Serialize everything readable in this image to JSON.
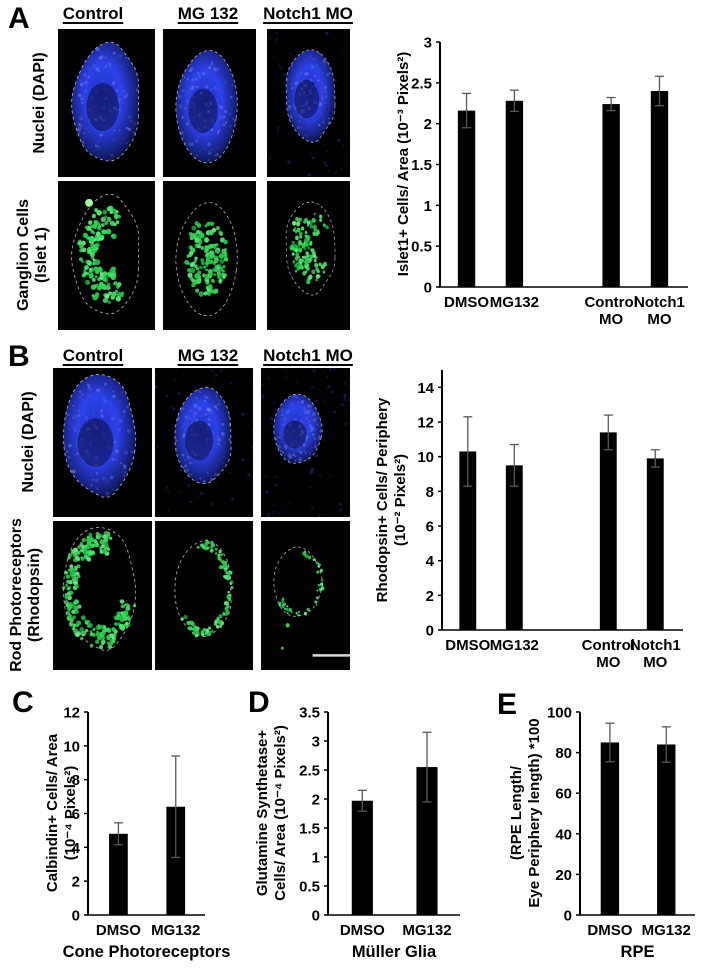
{
  "figure": {
    "panels": {
      "A": {
        "label": "A",
        "columns": [
          "Control",
          "MG 132",
          "Notch1 MO"
        ],
        "rows": [
          [
            "Nuclei (DAPI)"
          ],
          [
            "Ganglion Cells",
            "(Islet 1)"
          ]
        ]
      },
      "B": {
        "label": "B",
        "columns": [
          "Control",
          "MG 132",
          "Notch1 MO"
        ],
        "rows": [
          [
            "Nuclei (DAPI)"
          ],
          [
            "Rod Photoreceptors",
            "(Rhodopsin)"
          ]
        ]
      },
      "C": {
        "label": "C"
      },
      "D": {
        "label": "D"
      },
      "E": {
        "label": "E"
      }
    }
  },
  "colors": {
    "bar": "#000000",
    "error_bar": "#595959",
    "axis": "#000000",
    "dapi_blue": "#2c41e8",
    "stain_green": "#35d54a",
    "outline_dash": "#c9c9c9",
    "scale_bar": "#d5d5d5"
  },
  "chart_data": [
    {
      "panel": "A",
      "type": "bar",
      "ylabel_lines": [
        "Islet1+ Cells/ Area (10⁻³ Pixels²)"
      ],
      "xlabel": "",
      "categories": [
        [
          "DMSO"
        ],
        [
          "MG132"
        ],
        [
          "Control",
          "MO"
        ],
        [
          "Notch1",
          "MO"
        ]
      ],
      "values": [
        2.16,
        2.28,
        2.24,
        2.4
      ],
      "errors": [
        0.21,
        0.13,
        0.08,
        0.18
      ],
      "ylim": [
        0,
        3
      ],
      "ytick_step": 0.5,
      "grid": false,
      "legend": false
    },
    {
      "panel": "B",
      "type": "bar",
      "ylabel_lines": [
        "Rhodopsin+ Cells/ Periphery",
        "(10⁻² Pixels²)"
      ],
      "xlabel": "",
      "categories": [
        [
          "DMSO"
        ],
        [
          "MG132"
        ],
        [
          "Control",
          "MO"
        ],
        [
          "Notch1",
          "MO"
        ]
      ],
      "values": [
        10.3,
        9.5,
        11.4,
        9.9
      ],
      "errors": [
        2.0,
        1.2,
        1.0,
        0.5
      ],
      "ylim": [
        0,
        15
      ],
      "ytick_step": 2,
      "grid": false,
      "legend": false
    },
    {
      "panel": "C",
      "type": "bar",
      "ylabel_lines": [
        "Calbindin+ Cells/ Area",
        "(10⁻⁴ Pixels²)"
      ],
      "xlabel": "Cone Photoreceptors",
      "categories": [
        [
          "DMSO"
        ],
        [
          "MG132"
        ]
      ],
      "values": [
        4.8,
        6.4
      ],
      "errors": [
        0.65,
        3.0
      ],
      "ylim": [
        0,
        12
      ],
      "ytick_step": 2,
      "grid": false,
      "legend": false
    },
    {
      "panel": "D",
      "type": "bar",
      "ylabel_lines": [
        "Glutamine Synthetase+",
        "Cells/ Area (10⁻⁴ Pixels²)"
      ],
      "xlabel": "Müller Glia",
      "categories": [
        [
          "DMSO"
        ],
        [
          "MG132"
        ]
      ],
      "values": [
        1.97,
        2.55
      ],
      "errors": [
        0.18,
        0.6
      ],
      "ylim": [
        0,
        3.5
      ],
      "ytick_step": 0.5,
      "grid": false,
      "legend": false
    },
    {
      "panel": "E",
      "type": "bar",
      "ylabel_lines": [
        "(RPE Length/",
        "Eye Periphery length) *100"
      ],
      "xlabel": "RPE",
      "categories": [
        [
          "DMSO"
        ],
        [
          "MG132"
        ]
      ],
      "values": [
        85,
        84
      ],
      "errors": [
        9.5,
        8.7
      ],
      "ylim": [
        0,
        100
      ],
      "ytick_step": 20,
      "grid": false,
      "legend": false
    }
  ]
}
